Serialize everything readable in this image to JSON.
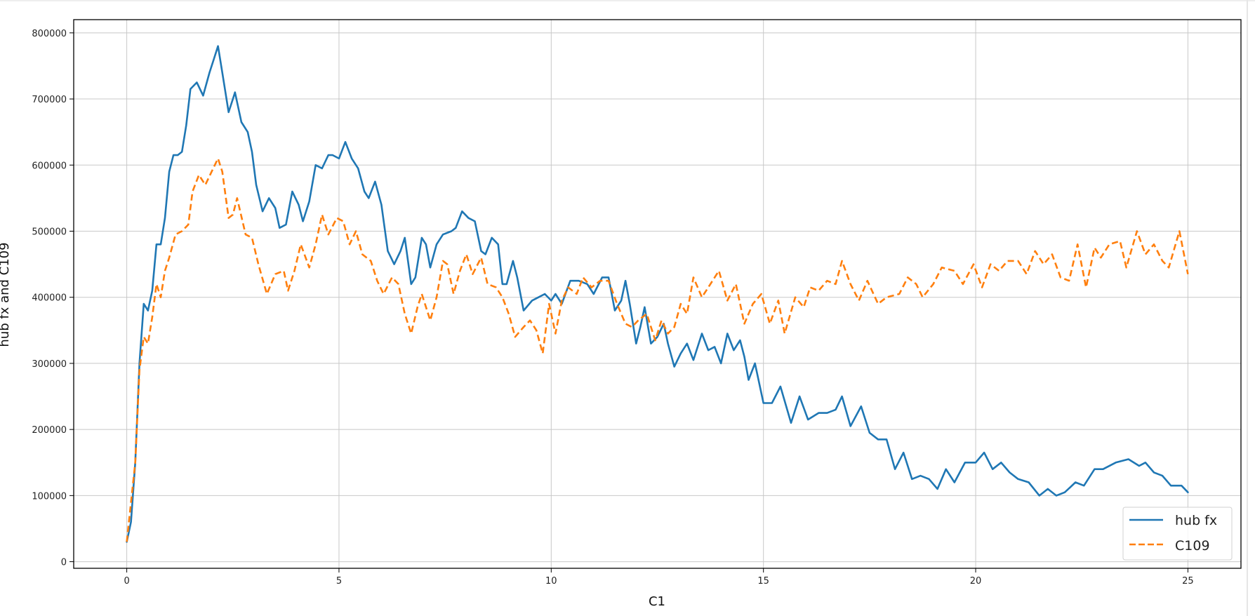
{
  "chart_data": {
    "type": "line",
    "title": "",
    "xlabel": "C1",
    "ylabel": "hub fx and C109",
    "xlim": [
      -1.25,
      26.25
    ],
    "ylim": [
      -10000,
      820000
    ],
    "xticks": [
      "0",
      "5",
      "10",
      "15",
      "20",
      "25"
    ],
    "xtick_values": [
      0,
      5,
      10,
      15,
      20,
      25
    ],
    "yticks": [
      "0",
      "100000",
      "200000",
      "300000",
      "400000",
      "500000",
      "600000",
      "700000",
      "800000"
    ],
    "ytick_values": [
      0,
      100000,
      200000,
      300000,
      400000,
      500000,
      600000,
      700000,
      800000
    ],
    "grid": true,
    "legend_position": "bottom-right",
    "series": [
      {
        "name": "hub fx",
        "color": "#1f77b4",
        "style": "solid",
        "x": [
          0,
          0.1,
          0.2,
          0.3,
          0.4,
          0.5,
          0.6,
          0.7,
          0.8,
          0.9,
          1.0,
          1.1,
          1.2,
          1.3,
          1.4,
          1.5,
          1.65,
          1.8,
          1.95,
          2.05,
          2.15,
          2.25,
          2.4,
          2.5,
          2.55,
          2.7,
          2.85,
          2.95,
          3.05,
          3.2,
          3.35,
          3.5,
          3.6,
          3.75,
          3.9,
          4.05,
          4.15,
          4.3,
          4.45,
          4.6,
          4.75,
          4.85,
          5.0,
          5.15,
          5.3,
          5.45,
          5.6,
          5.7,
          5.85,
          6.0,
          6.15,
          6.3,
          6.45,
          6.55,
          6.7,
          6.8,
          6.95,
          7.05,
          7.15,
          7.3,
          7.45,
          7.65,
          7.75,
          7.9,
          8.05,
          8.2,
          8.35,
          8.45,
          8.6,
          8.75,
          8.85,
          8.95,
          9.1,
          9.2,
          9.35,
          9.55,
          9.7,
          9.85,
          10.0,
          10.1,
          10.25,
          10.45,
          10.65,
          10.85,
          11.0,
          11.2,
          11.35,
          11.5,
          11.65,
          11.75,
          11.85,
          12.0,
          12.1,
          12.2,
          12.35,
          12.5,
          12.65,
          12.75,
          12.9,
          13.05,
          13.2,
          13.35,
          13.55,
          13.7,
          13.85,
          14.0,
          14.15,
          14.3,
          14.45,
          14.55,
          14.65,
          14.8,
          15.0,
          15.2,
          15.4,
          15.65,
          15.85,
          16.05,
          16.3,
          16.5,
          16.7,
          16.85,
          17.05,
          17.3,
          17.5,
          17.7,
          17.9,
          18.1,
          18.3,
          18.5,
          18.7,
          18.9,
          19.1,
          19.3,
          19.5,
          19.75,
          20.0,
          20.2,
          20.4,
          20.6,
          20.8,
          21.0,
          21.25,
          21.5,
          21.7,
          21.9,
          22.1,
          22.35,
          22.55,
          22.8,
          23.0,
          23.3,
          23.6,
          23.85,
          24.0,
          24.2,
          24.4,
          24.6,
          24.85,
          25.0
        ],
        "y": [
          30000,
          60000,
          150000,
          300000,
          390000,
          380000,
          410000,
          480000,
          480000,
          520000,
          590000,
          615000,
          615000,
          620000,
          660000,
          715000,
          725000,
          705000,
          740000,
          760000,
          780000,
          740000,
          680000,
          700000,
          710000,
          665000,
          650000,
          620000,
          570000,
          530000,
          550000,
          535000,
          505000,
          510000,
          560000,
          540000,
          515000,
          545000,
          600000,
          595000,
          615000,
          615000,
          610000,
          635000,
          610000,
          595000,
          560000,
          550000,
          575000,
          540000,
          470000,
          450000,
          470000,
          490000,
          420000,
          430000,
          490000,
          480000,
          445000,
          480000,
          495000,
          500000,
          505000,
          530000,
          520000,
          515000,
          470000,
          465000,
          490000,
          480000,
          420000,
          420000,
          455000,
          430000,
          380000,
          395000,
          400000,
          405000,
          395000,
          405000,
          390000,
          425000,
          425000,
          420000,
          405000,
          430000,
          430000,
          380000,
          395000,
          425000,
          390000,
          330000,
          355000,
          385000,
          330000,
          340000,
          360000,
          330000,
          295000,
          315000,
          330000,
          305000,
          345000,
          320000,
          325000,
          300000,
          345000,
          320000,
          335000,
          310000,
          275000,
          300000,
          240000,
          240000,
          265000,
          210000,
          250000,
          215000,
          225000,
          225000,
          230000,
          250000,
          205000,
          235000,
          195000,
          185000,
          185000,
          140000,
          165000,
          125000,
          130000,
          125000,
          110000,
          140000,
          120000,
          150000,
          150000,
          165000,
          140000,
          150000,
          135000,
          125000,
          120000,
          100000,
          110000,
          100000,
          105000,
          120000,
          115000,
          140000,
          140000,
          150000,
          155000,
          145000,
          150000,
          135000,
          130000,
          115000,
          115000,
          105000
        ]
      },
      {
        "name": "C109",
        "color": "#ff7f0e",
        "style": "dashed",
        "x": [
          0,
          0.2,
          0.3,
          0.4,
          0.5,
          0.6,
          0.7,
          0.8,
          0.9,
          1.0,
          1.15,
          1.3,
          1.45,
          1.55,
          1.7,
          1.85,
          2.0,
          2.15,
          2.25,
          2.4,
          2.5,
          2.6,
          2.8,
          2.95,
          3.1,
          3.3,
          3.5,
          3.7,
          3.8,
          3.95,
          4.1,
          4.3,
          4.45,
          4.6,
          4.75,
          4.95,
          5.1,
          5.25,
          5.4,
          5.55,
          5.75,
          5.9,
          6.05,
          6.25,
          6.4,
          6.55,
          6.7,
          6.85,
          6.95,
          7.15,
          7.3,
          7.45,
          7.55,
          7.7,
          7.85,
          8.0,
          8.15,
          8.35,
          8.5,
          8.7,
          8.85,
          9.0,
          9.15,
          9.35,
          9.5,
          9.65,
          9.8,
          9.95,
          10.1,
          10.25,
          10.4,
          10.6,
          10.75,
          10.95,
          11.15,
          11.35,
          11.55,
          11.75,
          11.9,
          12.05,
          12.25,
          12.45,
          12.6,
          12.75,
          12.9,
          13.05,
          13.2,
          13.35,
          13.55,
          13.75,
          13.95,
          14.15,
          14.35,
          14.55,
          14.75,
          14.95,
          15.15,
          15.35,
          15.5,
          15.75,
          15.95,
          16.1,
          16.3,
          16.5,
          16.7,
          16.85,
          17.05,
          17.25,
          17.45,
          17.7,
          17.9,
          18.2,
          18.4,
          18.6,
          18.75,
          19.0,
          19.2,
          19.5,
          19.7,
          19.95,
          20.15,
          20.35,
          20.55,
          20.75,
          21.0,
          21.2,
          21.4,
          21.6,
          21.8,
          22.0,
          22.2,
          22.4,
          22.6,
          22.8,
          22.95,
          23.15,
          23.4,
          23.55,
          23.8,
          24.0,
          24.2,
          24.4,
          24.55,
          24.8,
          25.0
        ],
        "y": [
          30000,
          150000,
          290000,
          340000,
          330000,
          370000,
          420000,
          400000,
          440000,
          460000,
          495000,
          500000,
          510000,
          560000,
          585000,
          570000,
          590000,
          610000,
          590000,
          520000,
          525000,
          550000,
          495000,
          490000,
          450000,
          405000,
          435000,
          440000,
          410000,
          440000,
          480000,
          445000,
          480000,
          525000,
          495000,
          520000,
          515000,
          480000,
          500000,
          465000,
          455000,
          425000,
          405000,
          430000,
          420000,
          375000,
          345000,
          385000,
          405000,
          365000,
          400000,
          455000,
          450000,
          405000,
          440000,
          465000,
          435000,
          460000,
          420000,
          415000,
          400000,
          375000,
          340000,
          355000,
          365000,
          350000,
          315000,
          390000,
          345000,
          395000,
          415000,
          405000,
          430000,
          415000,
          425000,
          425000,
          390000,
          360000,
          355000,
          365000,
          375000,
          335000,
          365000,
          345000,
          355000,
          390000,
          375000,
          430000,
          400000,
          420000,
          440000,
          395000,
          420000,
          360000,
          390000,
          405000,
          360000,
          395000,
          345000,
          400000,
          385000,
          415000,
          410000,
          425000,
          420000,
          455000,
          420000,
          395000,
          425000,
          390000,
          400000,
          405000,
          430000,
          420000,
          400000,
          420000,
          445000,
          440000,
          420000,
          450000,
          415000,
          450000,
          440000,
          455000,
          455000,
          435000,
          470000,
          450000,
          465000,
          430000,
          425000,
          480000,
          415000,
          475000,
          460000,
          480000,
          485000,
          445000,
          500000,
          465000,
          480000,
          455000,
          445000,
          500000,
          435000
        ]
      }
    ]
  }
}
